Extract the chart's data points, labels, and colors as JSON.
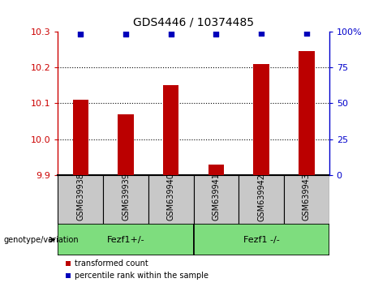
{
  "title": "GDS4446 / 10374485",
  "samples": [
    "GSM639938",
    "GSM639939",
    "GSM639940",
    "GSM639941",
    "GSM639942",
    "GSM639943"
  ],
  "bar_values": [
    10.11,
    10.07,
    10.15,
    9.93,
    10.21,
    10.245
  ],
  "percentile_values": [
    98,
    98,
    98,
    98,
    99,
    99
  ],
  "ylim_left": [
    9.9,
    10.3
  ],
  "ylim_right": [
    0,
    100
  ],
  "yticks_left": [
    9.9,
    10.0,
    10.1,
    10.2,
    10.3
  ],
  "yticks_right": [
    0,
    25,
    50,
    75,
    100
  ],
  "ytick_labels_right": [
    "0",
    "25",
    "50",
    "75",
    "100%"
  ],
  "groups": [
    {
      "label": "Fezf1+/-",
      "indices": [
        0,
        1,
        2
      ],
      "color": "#7EDD7E"
    },
    {
      "label": "Fezf1 -/-",
      "indices": [
        3,
        4,
        5
      ],
      "color": "#7EDD7E"
    }
  ],
  "bar_color": "#BB0000",
  "dot_color": "#0000BB",
  "genotype_label": "genotype/variation",
  "legend_items": [
    {
      "label": "transformed count",
      "color": "#BB0000"
    },
    {
      "label": "percentile rank within the sample",
      "color": "#0000BB"
    }
  ],
  "background_color": "#ffffff",
  "tick_color_left": "#CC0000",
  "tick_color_right": "#0000CC",
  "bar_width": 0.35,
  "xticklabel_area_color": "#C8C8C8"
}
